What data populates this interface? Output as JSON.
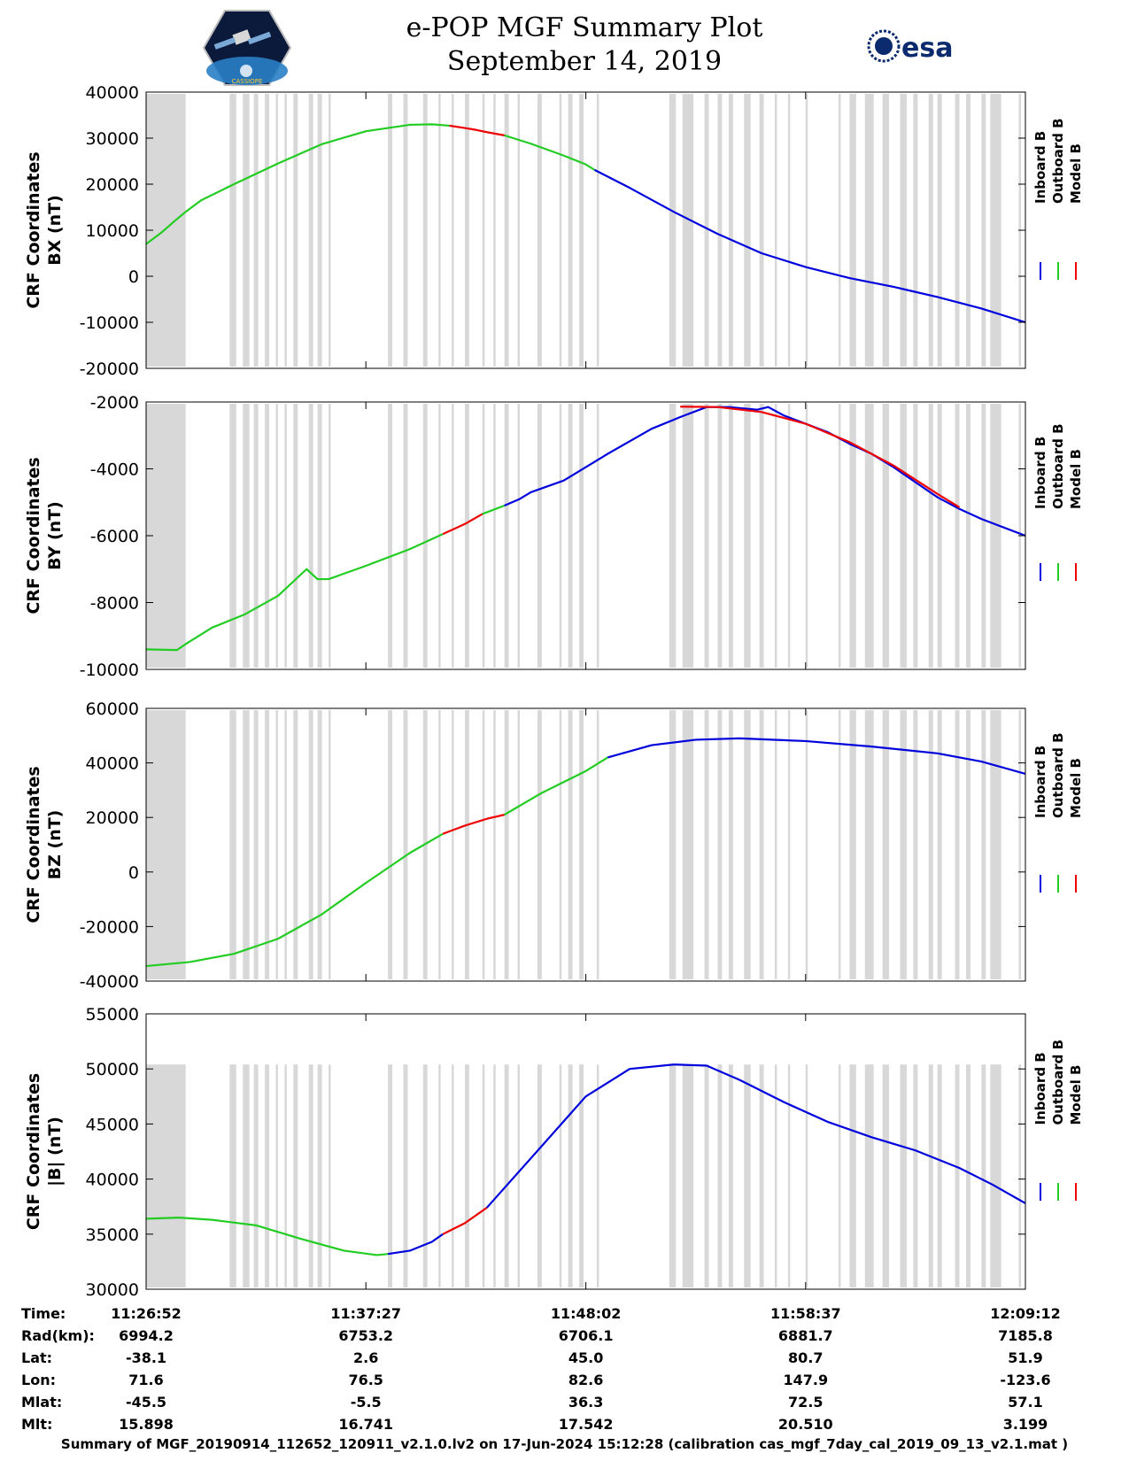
{
  "header": {
    "title_line1": "e-POP MGF Summary Plot",
    "title_line2": "September 14, 2019",
    "left_logo": "cassiope-mission-patch",
    "left_logo_text": "CASSIOPE",
    "right_logo": "esa-logo",
    "right_logo_text": "esa"
  },
  "legend": {
    "entries": [
      "Inboard B",
      "Outboard B",
      "Model B"
    ],
    "colors": [
      "#0000dd",
      "#22cc22",
      "#ee0000"
    ]
  },
  "chart_data": [
    {
      "type": "line",
      "ylabel_line1": "CRF Coordinates",
      "ylabel_line2": "BX (nT)",
      "ylim": [
        -20000,
        40000
      ],
      "yticks": [
        -20000,
        -10000,
        0,
        10000,
        20000,
        30000,
        40000
      ],
      "xlim": [
        0,
        40
      ],
      "xticks_minutes": [
        0,
        10.58,
        21.17,
        31.75,
        42.33
      ],
      "grid": false,
      "series": [
        {
          "name": "Outboard B",
          "color": "#22cc22",
          "x": [
            0,
            0.7,
            1.3,
            1.8,
            2.5,
            4,
            6,
            8,
            10,
            12,
            13,
            13.8
          ],
          "y": [
            7000,
            9500,
            12000,
            14000,
            16500,
            20000,
            24500,
            28700,
            31500,
            32900,
            33000,
            32700
          ]
        },
        {
          "name": "Model B",
          "color": "#ee0000",
          "x": [
            13.8,
            14.5,
            15,
            15.5,
            16.3
          ],
          "y": [
            32700,
            32200,
            31800,
            31300,
            30600
          ]
        },
        {
          "name": "Outboard B",
          "color": "#22cc22",
          "x": [
            16.3,
            17.5,
            19,
            20,
            20.4
          ],
          "y": [
            30600,
            28800,
            26200,
            24300,
            23100
          ]
        },
        {
          "name": "Inboard B",
          "color": "#0000dd",
          "x": [
            20.4,
            22,
            24,
            26,
            28,
            30,
            32,
            34,
            36,
            38,
            40
          ],
          "y": [
            23100,
            19200,
            14000,
            9200,
            5000,
            2000,
            -400,
            -2300,
            -4500,
            -7000,
            -10000
          ]
        }
      ]
    },
    {
      "type": "line",
      "ylabel_line1": "CRF Coordinates",
      "ylabel_line2": "BY (nT)",
      "ylim": [
        -10000,
        -2000
      ],
      "yticks": [
        -10000,
        -8000,
        -6000,
        -4000,
        -2000
      ],
      "xlim": [
        0,
        40
      ],
      "grid": false,
      "series": [
        {
          "name": "Outboard B",
          "color": "#22cc22",
          "x": [
            0,
            1.4,
            1.9,
            3,
            4.5,
            6,
            7.3,
            7.8,
            8.3,
            10,
            12,
            13.5
          ],
          "y": [
            -9400,
            -9420,
            -9200,
            -8750,
            -8350,
            -7800,
            -7000,
            -7300,
            -7300,
            -6900,
            -6400,
            -5950
          ]
        },
        {
          "name": "Model B",
          "color": "#ee0000",
          "x": [
            13.5,
            14.5,
            15.3
          ],
          "y": [
            -5950,
            -5650,
            -5350
          ]
        },
        {
          "name": "Outboard B",
          "color": "#22cc22",
          "x": [
            15.3,
            16.3
          ],
          "y": [
            -5350,
            -5100
          ]
        },
        {
          "name": "Inboard B",
          "color": "#0000dd",
          "x": [
            16.3,
            17,
            17.5,
            19,
            21,
            23,
            24.3,
            25.5,
            26.5,
            27.8,
            28.3,
            29,
            30,
            31,
            32,
            33,
            34,
            35,
            36,
            37,
            38,
            40
          ],
          "y": [
            -5100,
            -4900,
            -4700,
            -4350,
            -3550,
            -2800,
            -2450,
            -2150,
            -2150,
            -2230,
            -2150,
            -2400,
            -2650,
            -2900,
            -3250,
            -3550,
            -3950,
            -4400,
            -4850,
            -5200,
            -5500,
            -6000
          ]
        },
        {
          "name": "Model B",
          "color": "#ee0000",
          "x": [
            24.3,
            26,
            28,
            30,
            32,
            34,
            36,
            37
          ],
          "y": [
            -2140,
            -2150,
            -2300,
            -2650,
            -3200,
            -3900,
            -4750,
            -5150
          ]
        }
      ]
    },
    {
      "type": "line",
      "ylabel_line1": "CRF Coordinates",
      "ylabel_line2": "BZ (nT)",
      "ylim": [
        -40000,
        60000
      ],
      "yticks": [
        -40000,
        -20000,
        0,
        20000,
        40000,
        60000
      ],
      "xlim": [
        0,
        40
      ],
      "grid": false,
      "series": [
        {
          "name": "Outboard B",
          "color": "#22cc22",
          "x": [
            0,
            2,
            4,
            6,
            8,
            10,
            12,
            13.5
          ],
          "y": [
            -34500,
            -33000,
            -30000,
            -24500,
            -15500,
            -4000,
            7000,
            14000
          ]
        },
        {
          "name": "Model B",
          "color": "#ee0000",
          "x": [
            13.5,
            14.5,
            15.5,
            16.3
          ],
          "y": [
            14000,
            17000,
            19500,
            21000
          ]
        },
        {
          "name": "Outboard B",
          "color": "#22cc22",
          "x": [
            16.3,
            18,
            20,
            21
          ],
          "y": [
            21000,
            29000,
            37000,
            42000
          ]
        },
        {
          "name": "Inboard B",
          "color": "#0000dd",
          "x": [
            21,
            23,
            25,
            27,
            30,
            33,
            36,
            38,
            40
          ],
          "y": [
            42000,
            46500,
            48500,
            49000,
            48000,
            46000,
            43500,
            40500,
            36000
          ]
        }
      ]
    },
    {
      "type": "line",
      "ylabel_line1": "CRF Coordinates",
      "ylabel_line2": "|B| (nT)",
      "ylim": [
        30000,
        55000
      ],
      "yticks": [
        30000,
        35000,
        40000,
        45000,
        50000,
        55000
      ],
      "xlim": [
        0,
        40
      ],
      "grid": false,
      "series": [
        {
          "name": "Outboard B",
          "color": "#22cc22",
          "x": [
            0,
            1.5,
            3,
            5,
            7,
            9,
            10.5,
            11
          ],
          "y": [
            36400,
            36500,
            36300,
            35800,
            34600,
            33500,
            33100,
            33200
          ]
        },
        {
          "name": "Inboard B",
          "color": "#0000dd",
          "x": [
            11,
            12,
            13,
            13.5
          ],
          "y": [
            33200,
            33500,
            34300,
            35000
          ]
        },
        {
          "name": "Model B",
          "color": "#ee0000",
          "x": [
            13.5,
            14.5,
            15.5
          ],
          "y": [
            35000,
            36000,
            37400
          ]
        },
        {
          "name": "Inboard B",
          "color": "#0000dd",
          "x": [
            15.5,
            18,
            20,
            22,
            24,
            25.5,
            27,
            29,
            31,
            33,
            35,
            37,
            38.5,
            40
          ],
          "y": [
            37400,
            43000,
            47500,
            50000,
            50400,
            50300,
            49000,
            47000,
            45200,
            43800,
            42600,
            41000,
            39500,
            37800
          ]
        }
      ]
    }
  ],
  "gray_bands_minutes": [
    [
      0,
      1.8
    ],
    [
      3.8,
      4.1
    ],
    [
      4.4,
      4.7
    ],
    [
      4.9,
      5.1
    ],
    [
      5.4,
      5.6
    ],
    [
      5.9,
      6.0
    ],
    [
      6.3,
      6.4
    ],
    [
      6.7,
      6.9
    ],
    [
      7.4,
      7.6
    ],
    [
      7.8,
      8.0
    ],
    [
      8.3,
      8.4
    ],
    [
      11.0,
      11.2
    ],
    [
      11.7,
      11.9
    ],
    [
      12.6,
      12.8
    ],
    [
      13.3,
      13.4
    ],
    [
      13.9,
      14.0
    ],
    [
      14.5,
      14.7
    ],
    [
      15.3,
      15.4
    ],
    [
      15.8,
      15.9
    ],
    [
      16.3,
      16.5
    ],
    [
      16.9,
      17.0
    ],
    [
      17.8,
      18.0
    ],
    [
      18.8,
      18.9
    ],
    [
      19.2,
      19.4
    ],
    [
      19.7,
      19.9
    ],
    [
      20.5,
      20.6
    ],
    [
      23.8,
      24.1
    ],
    [
      24.4,
      24.9
    ],
    [
      25.4,
      25.6
    ],
    [
      26.0,
      26.2
    ],
    [
      26.5,
      26.7
    ],
    [
      27.2,
      27.5
    ],
    [
      27.9,
      28.1
    ],
    [
      28.6,
      28.7
    ],
    [
      29.2,
      29.3
    ],
    [
      30.0,
      30.1
    ],
    [
      31.5,
      31.6
    ],
    [
      32.0,
      32.3
    ],
    [
      32.7,
      33.1
    ],
    [
      33.5,
      33.8
    ],
    [
      34.3,
      34.6
    ],
    [
      34.9,
      35.1
    ],
    [
      35.6,
      35.8
    ],
    [
      36.0,
      36.2
    ],
    [
      36.8,
      37.0
    ],
    [
      37.3,
      37.5
    ],
    [
      38.0,
      38.2
    ],
    [
      38.4,
      38.9
    ],
    [
      39.7,
      39.8
    ]
  ],
  "table": {
    "row_labels": [
      "Time:",
      "Rad(km):",
      "Lat:",
      "Lon:",
      "Mlat:",
      "Mlt:"
    ],
    "columns": [
      [
        "11:26:52",
        "6994.2",
        "-38.1",
        "71.6",
        "-45.5",
        "15.898"
      ],
      [
        "11:37:27",
        "6753.2",
        "2.6",
        "76.5",
        "-5.5",
        "16.741"
      ],
      [
        "11:48:02",
        "6706.1",
        "45.0",
        "82.6",
        "36.3",
        "17.542"
      ],
      [
        "11:58:37",
        "6881.7",
        "80.7",
        "147.9",
        "72.5",
        "20.510"
      ],
      [
        "12:09:12",
        "7185.8",
        "51.9",
        "-123.6",
        "57.1",
        "3.199"
      ]
    ]
  },
  "footer": "Summary of MGF_20190914_112652_120911_v2.1.0.lv2 on 17-Jun-2024 15:12:28 (calibration cas_mgf_7day_cal_2019_09_13_v2.1.mat )"
}
